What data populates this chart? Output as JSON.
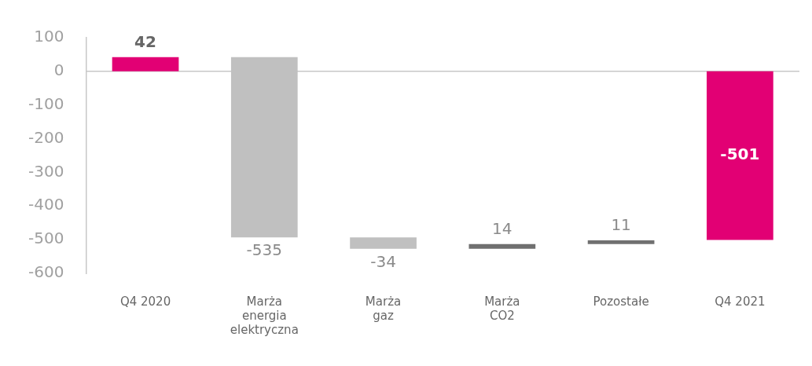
{
  "chart_data": {
    "type": "bar",
    "categories": [
      "Q4 2020",
      "Marża energia elektryczna",
      "Marża gaz",
      "Marża CO2",
      "Pozostałe",
      "Q4 2021"
    ],
    "values": [
      42,
      -535,
      -34,
      14,
      11,
      -501
    ],
    "base": [
      0,
      42,
      -493,
      -527,
      -513,
      0
    ],
    "colors": [
      "#e20074",
      "#c0c0c0",
      "#c0c0c0",
      "#707070",
      "#707070",
      "#e20074"
    ],
    "ylim": [
      -600,
      100
    ],
    "yticks": [
      100,
      0,
      -100,
      -200,
      -300,
      -400,
      -500,
      -600
    ],
    "grid": false,
    "legend": false,
    "data_labels": true,
    "ref_lines": [
      {
        "axis": "y",
        "value": 0,
        "color": "#c8c8c8"
      }
    ]
  }
}
